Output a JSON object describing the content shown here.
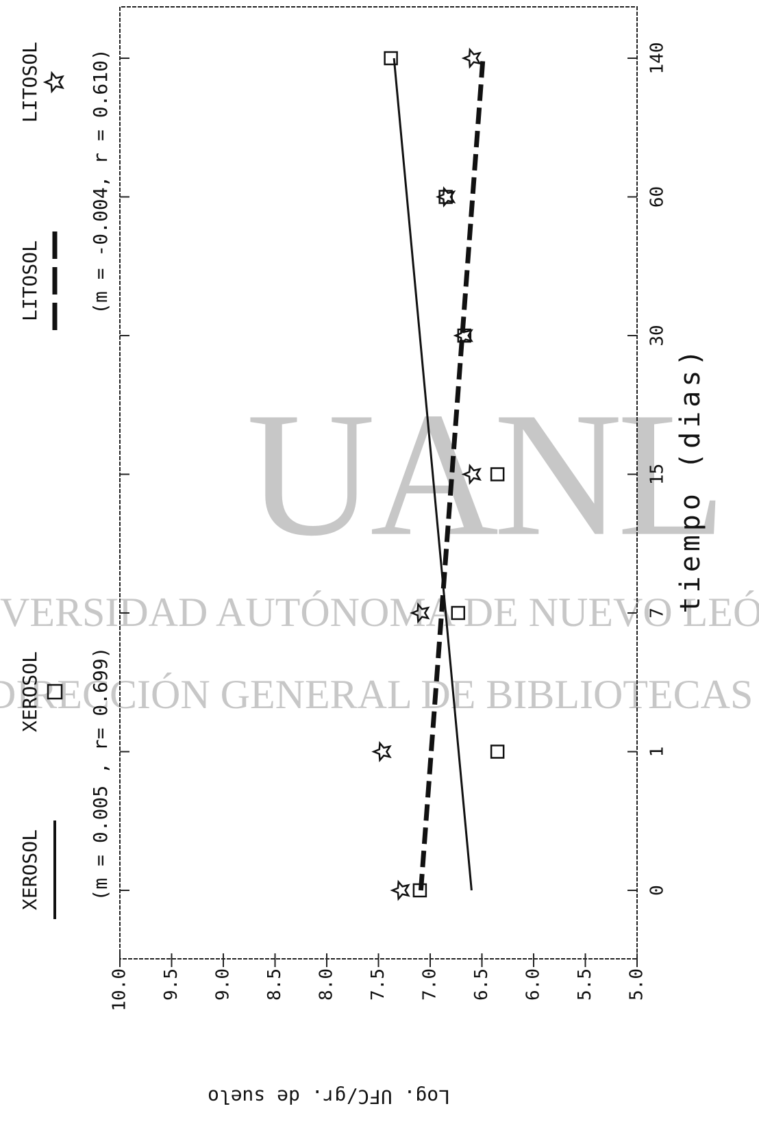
{
  "chart_data": {
    "type": "scatter",
    "x_label": "tiempo (dias)",
    "y_label": "Log. UFC/gr. de suelo",
    "categories": [
      0,
      1,
      7,
      15,
      30,
      60,
      140
    ],
    "ylim": [
      4.8,
      10.0
    ],
    "yticks": [
      {
        "value": 10,
        "label": "10.0"
      },
      {
        "value": 9.5,
        "label": "9.5"
      },
      {
        "value": 9,
        "label": "9.0"
      },
      {
        "value": 8.5,
        "label": "8.5"
      },
      {
        "value": 8,
        "label": "8.0"
      },
      {
        "value": 7.5,
        "label": "7.5"
      },
      {
        "value": 7,
        "label": "7.0"
      },
      {
        "value": 6.5,
        "label": "6.5"
      },
      {
        "value": 6,
        "label": "6.0"
      },
      {
        "value": 5.5,
        "label": "5.5"
      },
      {
        "value": 5,
        "label": "5.0"
      }
    ],
    "series": [
      {
        "name": "XEROSOL",
        "marker": "square",
        "line": "solid",
        "color": "#111111",
        "values": [
          7.1,
          6.35,
          6.73,
          6.35,
          6.67,
          6.85,
          7.38
        ],
        "fit_values": [
          6.6,
          7.35
        ],
        "annotation": "(m = 0.005 , r= 0.699)"
      },
      {
        "name": "LITOSOL",
        "marker": "star",
        "line": "dashed",
        "color": "#111111",
        "values": [
          7.28,
          7.46,
          7.09,
          6.59,
          6.67,
          6.84,
          6.59
        ],
        "fit_values": [
          7.09,
          6.49
        ],
        "annotation": "(m = -0.004, r = 0.610)"
      }
    ]
  },
  "watermark": [
    "UANL",
    "VERSIDAD AUTÓNOMA DE NUEVO LEÓN",
    "DIRECCIÓN GENERAL DE BIBLIOTECAS"
  ]
}
